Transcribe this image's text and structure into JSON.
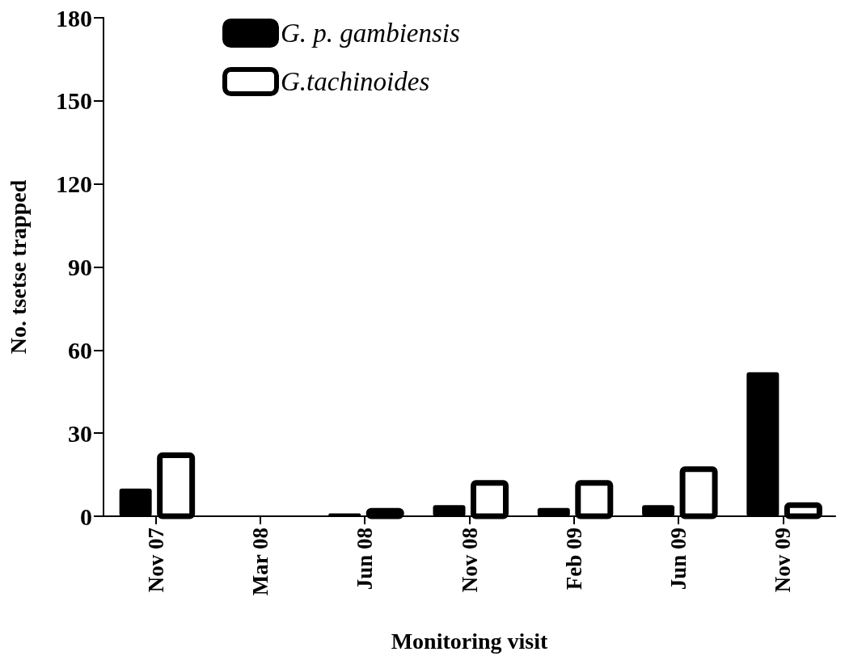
{
  "chart_data": {
    "type": "bar",
    "xlabel": "Monitoring visit",
    "ylabel": "No. tsetse trapped",
    "categories": [
      "Nov 07",
      "Mar 08",
      "Jun 08",
      "Nov 08",
      "Feb 09",
      "Jun 09",
      "Nov 09"
    ],
    "series": [
      {
        "name": "G. p. gambiensis",
        "color": "#000000",
        "values": [
          10,
          0,
          1,
          4,
          3,
          4,
          52
        ]
      },
      {
        "name": "G.tachinoides",
        "color": "#ffffff",
        "values": [
          22,
          0,
          2,
          12,
          12,
          17,
          4
        ]
      }
    ],
    "ylim": [
      0,
      180
    ],
    "yticks": [
      0,
      30,
      60,
      90,
      120,
      150,
      180
    ],
    "grid": false,
    "legend": "top left"
  }
}
